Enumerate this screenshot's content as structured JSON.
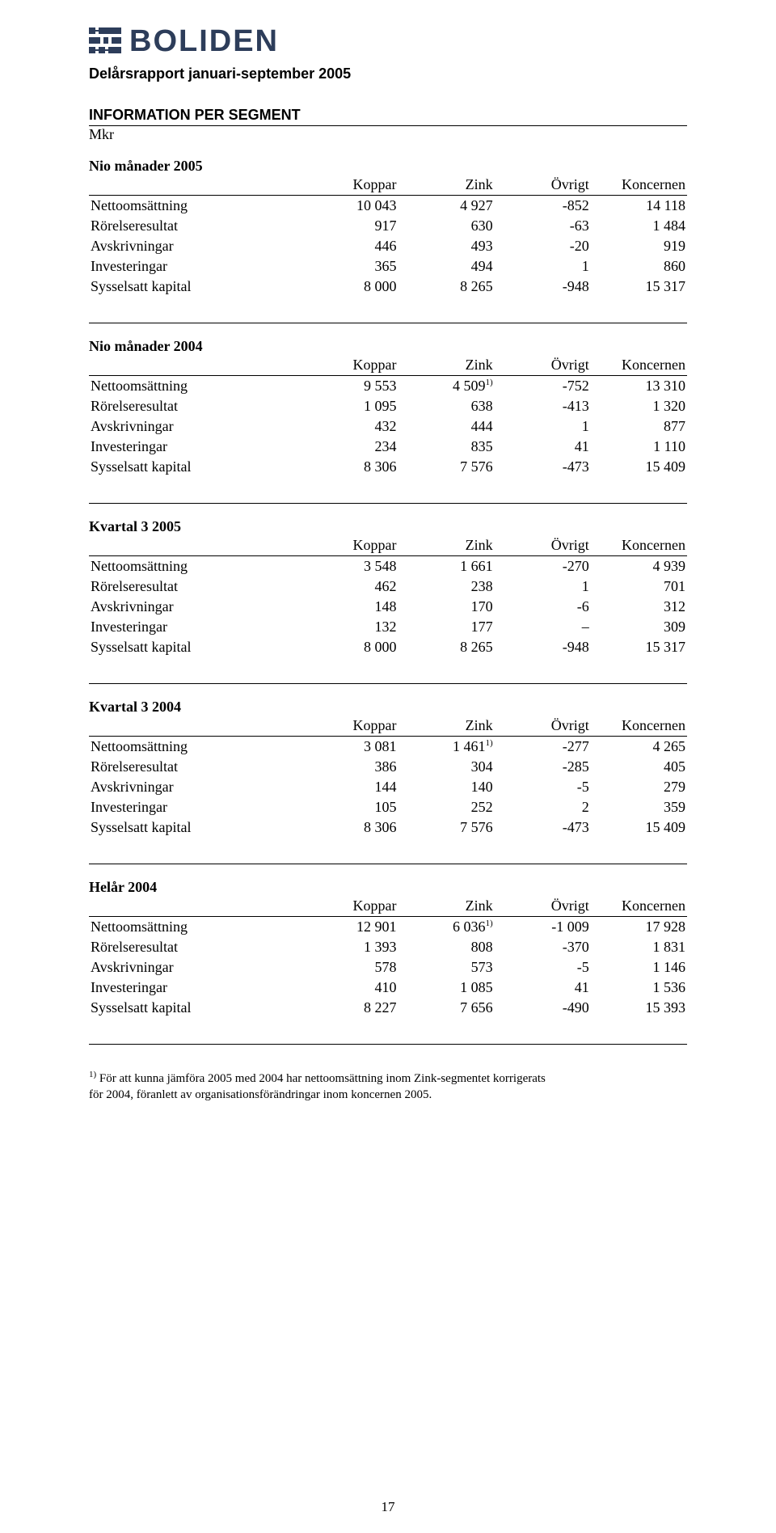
{
  "logo_text": "BOLIDEN",
  "subtitle": "Delårsrapport januari-september 2005",
  "section_title": "INFORMATION PER SEGMENT",
  "mkr": "Mkr",
  "columns": [
    "Koppar",
    "Zink",
    "Övrigt",
    "Koncernen"
  ],
  "row_labels": [
    "Nettoomsättning",
    "Rörelseresultat",
    "Avskrivningar",
    "Investeringar",
    "Sysselsatt kapital"
  ],
  "tables": [
    {
      "title": "Nio månader 2005",
      "sup": [
        "",
        "",
        "",
        "",
        ""
      ],
      "rows": [
        [
          "10 043",
          "4 927",
          "-852",
          "14 118"
        ],
        [
          "917",
          "630",
          "-63",
          "1 484"
        ],
        [
          "446",
          "493",
          "-20",
          "919"
        ],
        [
          "365",
          "494",
          "1",
          "860"
        ],
        [
          "8 000",
          "8 265",
          "-948",
          "15 317"
        ]
      ]
    },
    {
      "title": "Nio månader 2004",
      "sup": [
        "",
        "1)",
        "",
        "",
        ""
      ],
      "rows": [
        [
          "9 553",
          "4 509",
          "-752",
          "13 310"
        ],
        [
          "1 095",
          "638",
          "-413",
          "1 320"
        ],
        [
          "432",
          "444",
          "1",
          "877"
        ],
        [
          "234",
          "835",
          "41",
          "1 110"
        ],
        [
          "8 306",
          "7 576",
          "-473",
          "15 409"
        ]
      ]
    },
    {
      "title": "Kvartal 3 2005",
      "sup": [
        "",
        "",
        "",
        "",
        ""
      ],
      "rows": [
        [
          "3 548",
          "1 661",
          "-270",
          "4 939"
        ],
        [
          "462",
          "238",
          "1",
          "701"
        ],
        [
          "148",
          "170",
          "-6",
          "312"
        ],
        [
          "132",
          "177",
          "–",
          "309"
        ],
        [
          "8 000",
          "8 265",
          "-948",
          "15 317"
        ]
      ]
    },
    {
      "title": "Kvartal 3 2004",
      "sup": [
        "",
        "1)",
        "",
        "",
        ""
      ],
      "rows": [
        [
          "3 081",
          "1 461",
          "-277",
          "4 265"
        ],
        [
          "386",
          "304",
          "-285",
          "405"
        ],
        [
          "144",
          "140",
          "-5",
          "279"
        ],
        [
          "105",
          "252",
          "2",
          "359"
        ],
        [
          "8 306",
          "7 576",
          "-473",
          "15 409"
        ]
      ]
    },
    {
      "title": "Helår 2004",
      "sup": [
        "",
        "1)",
        "",
        "",
        ""
      ],
      "rows": [
        [
          "12 901",
          "6 036",
          "-1 009",
          "17 928"
        ],
        [
          "1 393",
          "808",
          "-370",
          "1 831"
        ],
        [
          "578",
          "573",
          "-5",
          "1 146"
        ],
        [
          "410",
          "1 085",
          "41",
          "1 536"
        ],
        [
          "8 227",
          "7 656",
          "-490",
          "15 393"
        ]
      ]
    }
  ],
  "footnote_sup": "1)",
  "footnote": " För att kunna jämföra 2005 med 2004 har nettoomsättning inom Zink-segmentet korrigerats för 2004, föranlett av organisationsförändringar inom koncernen 2005.",
  "page_number": "17",
  "logo_colors": {
    "fill": "#2d3d5a"
  }
}
